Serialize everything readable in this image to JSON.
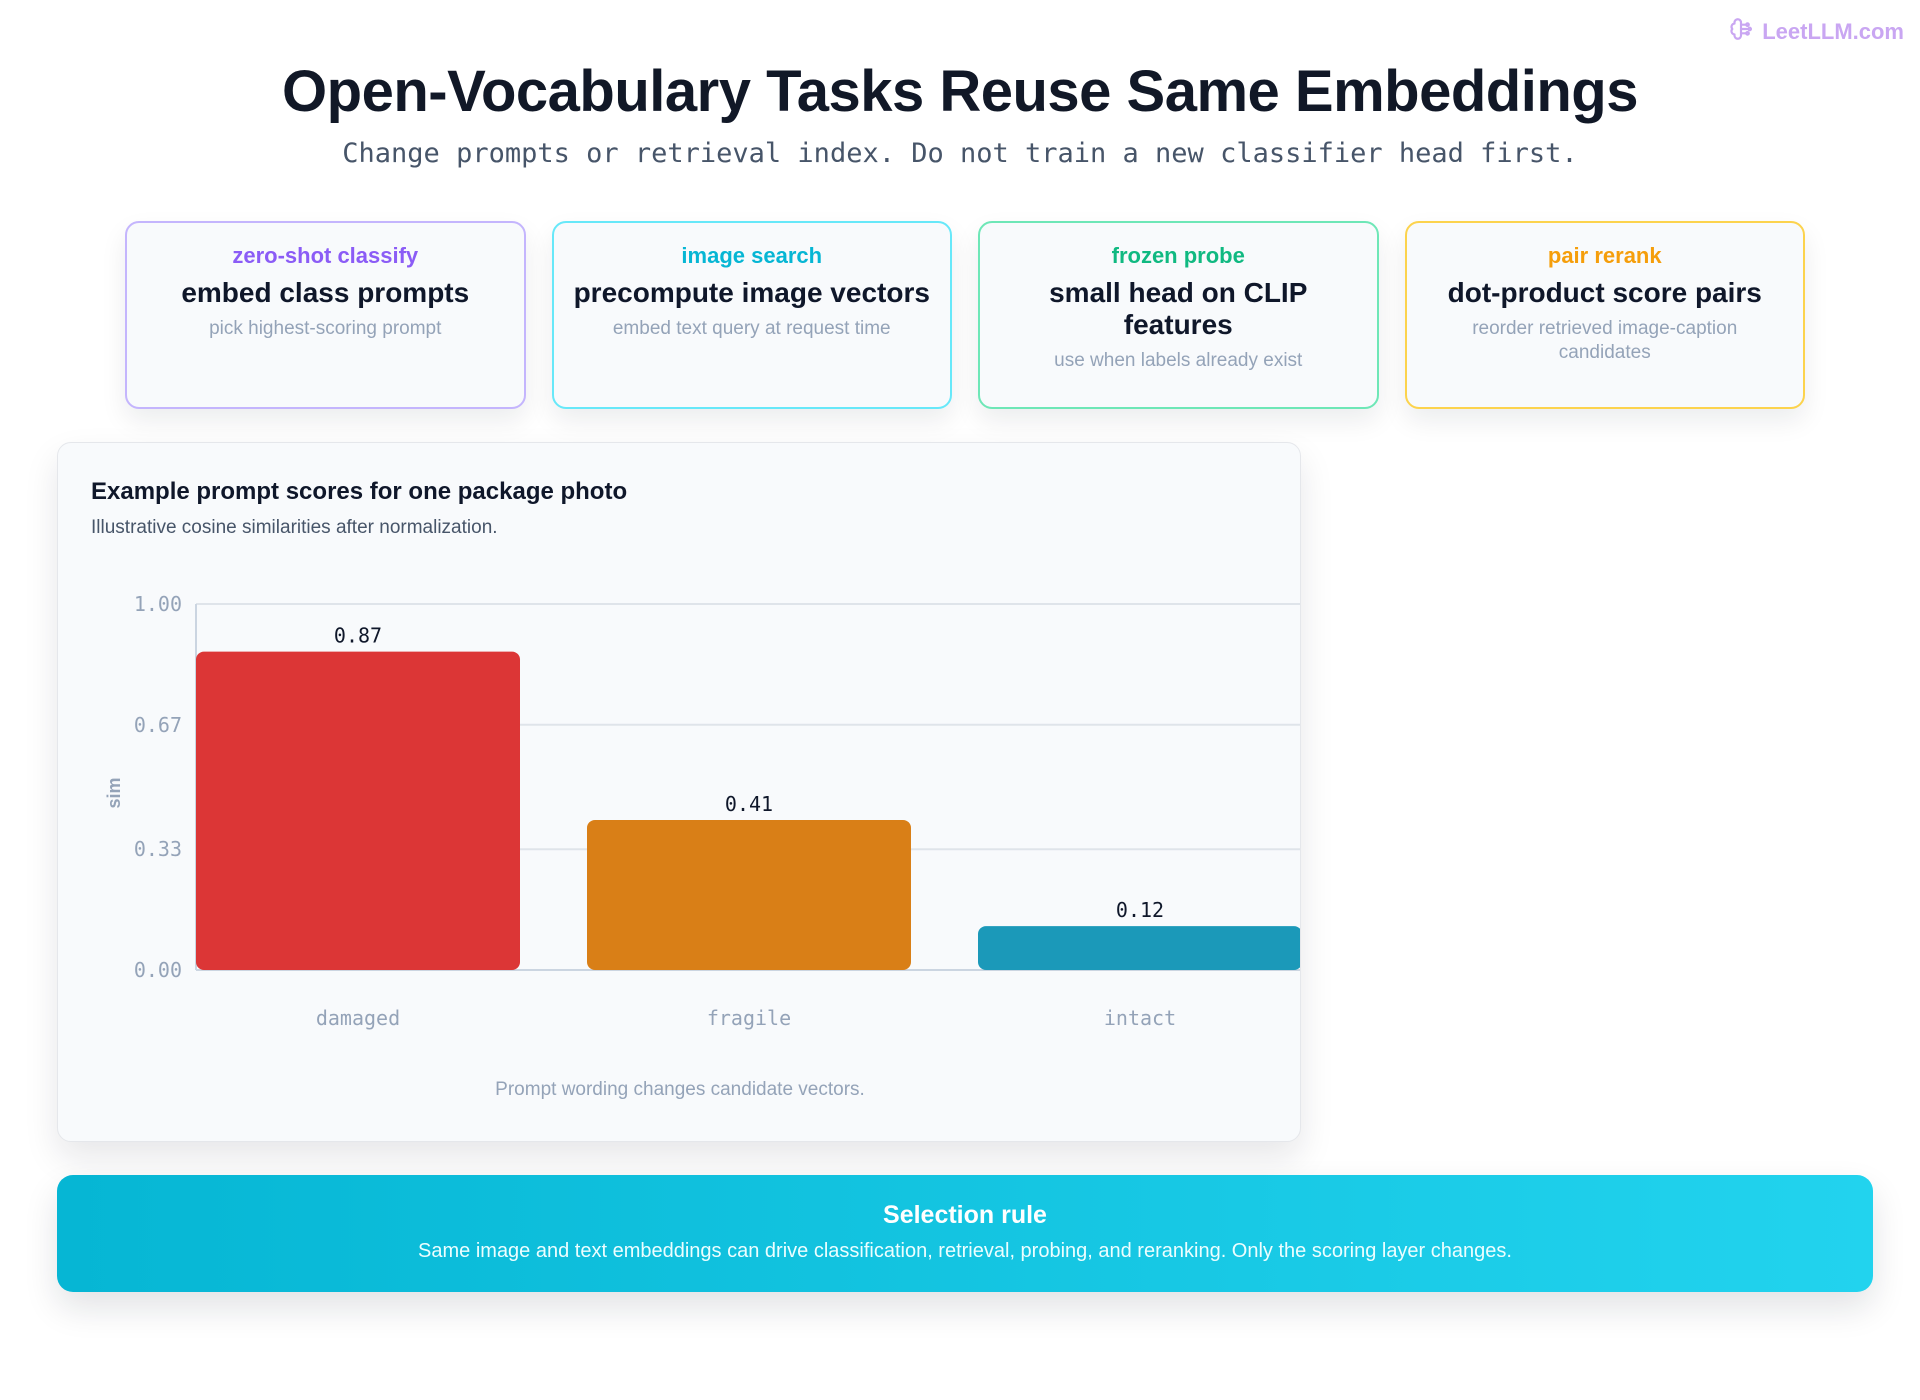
{
  "brand": {
    "text": "LeetLLM.com",
    "icon": "brain-icon"
  },
  "title": "Open-Vocabulary Tasks Reuse Same Embeddings",
  "subtitle": "Change prompts or retrieval index. Do not train a new classifier head first.",
  "cards": [
    {
      "category": "zero-shot classify",
      "headline": "embed class prompts",
      "description": "pick highest-scoring prompt",
      "accent": "#8b5cf6",
      "border": "#c4b5fd"
    },
    {
      "category": "image search",
      "headline": "precompute image vectors",
      "description": "embed text query at request time",
      "accent": "#06b6d4",
      "border": "#67e8f9"
    },
    {
      "category": "frozen probe",
      "headline": "small head on CLIP features",
      "description": "use when labels already exist",
      "accent": "#10b981",
      "border": "#6ee7b7"
    },
    {
      "category": "pair rerank",
      "headline": "dot-product score pairs",
      "description": "reorder retrieved image-caption candidates",
      "accent": "#f59e0b",
      "border": "#fcd34d"
    }
  ],
  "chart": {
    "title": "Example prompt scores for one package photo",
    "subtitle": "Illustrative cosine similarities after normalization.",
    "note": "Prompt wording changes candidate vectors."
  },
  "chart_data": {
    "type": "bar",
    "categories": [
      "damaged",
      "fragile",
      "intact"
    ],
    "values": [
      0.87,
      0.41,
      0.12
    ],
    "value_labels": [
      "0.87",
      "0.41",
      "0.12"
    ],
    "colors": [
      "#dc3636",
      "#d97f17",
      "#1b99b9"
    ],
    "ylabel": "sim",
    "ylim": [
      0,
      1
    ],
    "yticks": [
      0,
      0.33,
      0.67,
      1.0
    ],
    "ytick_labels": [
      "0.00",
      "0.33",
      "0.67",
      "1.00"
    ],
    "grid": true
  },
  "selection_rule": {
    "title": "Selection rule",
    "text": "Same image and text embeddings can drive classification, retrieval, probing, and reranking. Only the scoring layer changes."
  }
}
